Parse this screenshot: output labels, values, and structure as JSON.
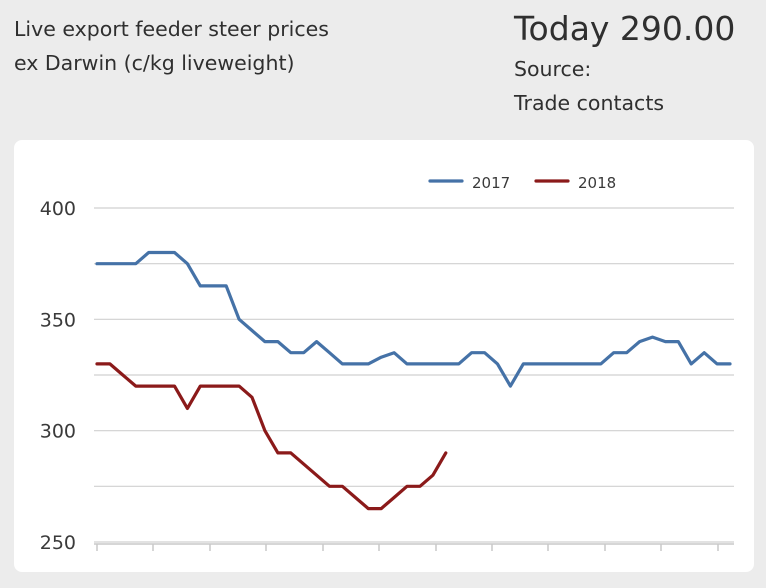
{
  "header": {
    "title_line1": "Live export feeder steer prices",
    "title_line2": "ex Darwin (c/kg liveweight)",
    "today_label": "Today 290.00",
    "source_label": "Source:",
    "source_value": "Trade contacts"
  },
  "chart_data": {
    "type": "line",
    "title": "",
    "xlabel": "",
    "ylabel": "",
    "ylim": [
      250,
      400
    ],
    "yticks": [
      250,
      300,
      350,
      400
    ],
    "grid": true,
    "legend_position": "top-right",
    "series": [
      {
        "name": "2017",
        "color": "#4572a7",
        "values": [
          375,
          375,
          375,
          375,
          380,
          380,
          380,
          375,
          365,
          365,
          365,
          350,
          345,
          340,
          340,
          335,
          335,
          340,
          335,
          330,
          330,
          330,
          333,
          335,
          330,
          330,
          330,
          330,
          330,
          335,
          335,
          330,
          320,
          330,
          330,
          330,
          330,
          330,
          330,
          330,
          335,
          335,
          340,
          342,
          340,
          340,
          330,
          335,
          330,
          330
        ]
      },
      {
        "name": "2018",
        "color": "#8b1a1a",
        "values": [
          330,
          330,
          325,
          320,
          320,
          320,
          320,
          310,
          320,
          320,
          320,
          320,
          315,
          300,
          290,
          290,
          285,
          280,
          275,
          275,
          270,
          265,
          265,
          270,
          275,
          275,
          280,
          290
        ]
      }
    ]
  }
}
